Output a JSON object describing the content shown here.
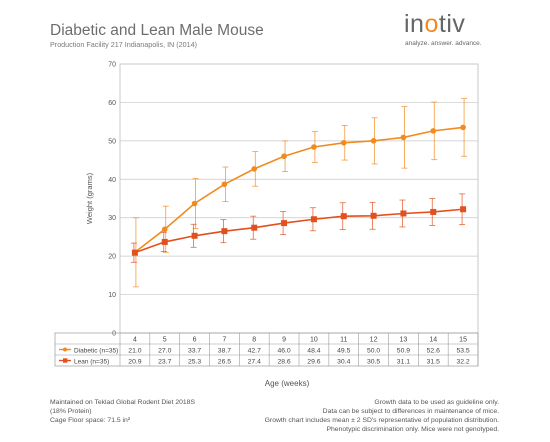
{
  "header": {
    "title": "Diabetic and Lean Male Mouse",
    "subtitle": "Production Facility 217 Indianapolis, IN (2014)"
  },
  "logo": {
    "word_parts": [
      "in",
      "o",
      "tiv"
    ],
    "tagline": "analyze. answer. advance."
  },
  "chart_data": {
    "type": "line",
    "title": "Diabetic and Lean Male Mouse",
    "xlabel": "Age (weeks)",
    "ylabel": "Weight (grams)",
    "ylim": [
      0,
      70
    ],
    "yticks": [
      0,
      10,
      20,
      30,
      40,
      50,
      60,
      70
    ],
    "x": [
      4,
      5,
      6,
      7,
      8,
      9,
      10,
      11,
      12,
      13,
      14,
      15
    ],
    "grid": true,
    "legend": "table-below",
    "series": [
      {
        "name": "Diabetic (n=35)",
        "color": "#f28a1e",
        "marker": "circle",
        "values": [
          21.0,
          27.0,
          33.7,
          38.7,
          42.7,
          46.0,
          48.4,
          49.5,
          50.0,
          50.9,
          52.6,
          53.5
        ],
        "error_sd2": [
          9.0,
          6.0,
          6.5,
          4.5,
          4.5,
          4.0,
          4.0,
          4.5,
          6.0,
          8.0,
          7.5,
          7.5
        ]
      },
      {
        "name": "Lean (n=35)",
        "color": "#e2501e",
        "marker": "square",
        "values": [
          20.9,
          23.7,
          25.3,
          26.5,
          27.4,
          28.6,
          29.6,
          30.4,
          30.5,
          31.1,
          31.5,
          32.2
        ],
        "error_sd2": [
          2.5,
          2.5,
          3.0,
          3.0,
          3.0,
          3.0,
          3.0,
          3.5,
          3.5,
          3.5,
          3.5,
          4.0
        ]
      }
    ]
  },
  "footer": {
    "left_lines": [
      "Maintained on Teklad Global Rodent Diet 2018S",
      "(18% Protein)",
      "Cage Floor space: 71.5 in²"
    ],
    "right_lines": [
      "Growth data to be used as guideline only.",
      "Data can be subject to differences in maintenance of mice.",
      "Growth chart includes mean ± 2 SD's representative of population distribution.",
      "Phenotypic discrimination only. Mice were not genotyped."
    ]
  }
}
